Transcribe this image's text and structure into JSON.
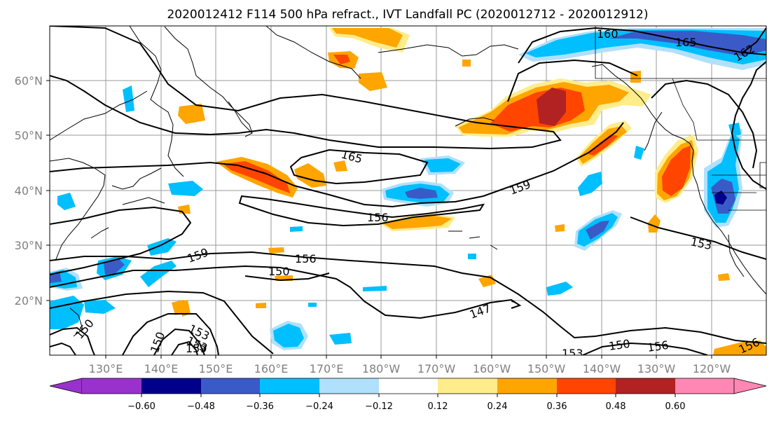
{
  "title": "2020012412 F114 500 hPa refract., IVT Landfall PC (2020012712 - 2020012912)",
  "map": {
    "lon_labels": [
      "130°E",
      "140°E",
      "150°E",
      "160°E",
      "170°E",
      "180°W",
      "170°W",
      "160°W",
      "150°W",
      "140°W",
      "130°W",
      "120°W"
    ],
    "lat_labels": [
      "60°N",
      "50°N",
      "40°N",
      "30°N",
      "20°N"
    ],
    "grid": true,
    "contour_labels": [
      "160",
      "165",
      "162",
      "165",
      "159",
      "156",
      "159",
      "156",
      "150",
      "153",
      "147",
      "150",
      "156",
      "156",
      "153",
      "159",
      "150",
      "150",
      "153",
      "153"
    ]
  },
  "colorbar": {
    "tick_labels": [
      "−0.60",
      "−0.48",
      "−0.36",
      "−0.24",
      "−0.12",
      "0.12",
      "0.24",
      "0.36",
      "0.48",
      "0.60"
    ],
    "colors": [
      "#9932cc",
      "#00008b",
      "#3a5bc7",
      "#00bfff",
      "#b0e0fb",
      "#ffffff",
      "#ffec8b",
      "#ffa500",
      "#ff4500",
      "#b22222",
      "#ff87b4"
    ]
  },
  "shading_colors": {
    "neg_light": "#b0e0fb",
    "neg_mid": "#00bfff",
    "neg_strong": "#3a5bc7",
    "pos_light": "#ffec8b",
    "pos_mid": "#ffa500",
    "pos_strong": "#ff4500",
    "pos_vstrong": "#b22222"
  }
}
